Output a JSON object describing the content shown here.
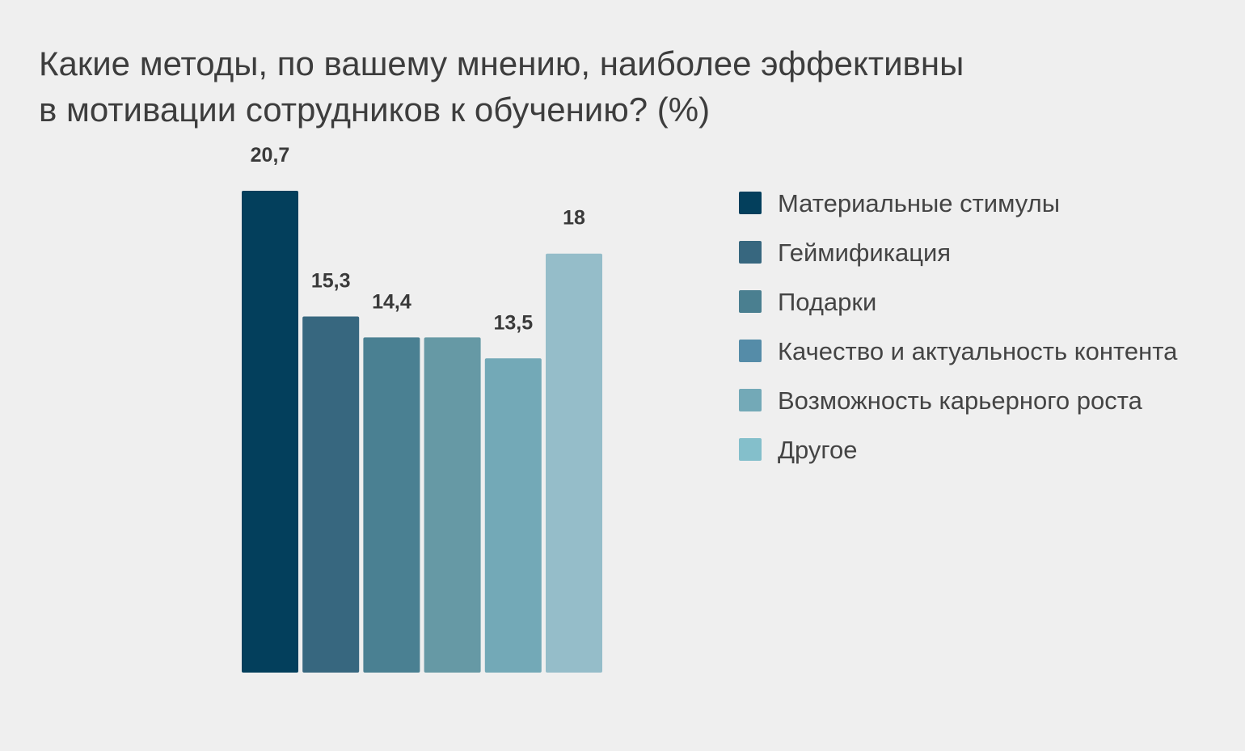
{
  "title_lines": [
    "Какие методы, по вашему мнению, наиболее эффективны",
    "в мотивации сотрудников к обучению? (%)"
  ],
  "chart_data": {
    "type": "bar",
    "title": "Какие методы, по вашему мнению, наиболее эффективны в мотивации сотрудников к обучению? (%)",
    "categories": [
      "Материальные стимулы",
      "Геймификация",
      "Подарки",
      "Качество и актуальность контента",
      "Возможность карьерного роста",
      "Другое"
    ],
    "values": [
      20.7,
      15.3,
      14.4,
      14.4,
      13.5,
      18
    ],
    "data_labels": [
      "20,7",
      "15,3",
      "14,4",
      "",
      "13,5",
      "18"
    ],
    "colors": [
      "#033f5c",
      "#37677f",
      "#4a8092",
      "#6699a5",
      "#73a9b7",
      "#95bdc9"
    ],
    "legend_colors": [
      "#033f5c",
      "#37677f",
      "#4a7f90",
      "#558ca8",
      "#73a9b7",
      "#84bfcb"
    ],
    "xlabel": "",
    "ylabel": "",
    "ylim": [
      0,
      20.7
    ],
    "grid": false,
    "legend_position": "right"
  }
}
